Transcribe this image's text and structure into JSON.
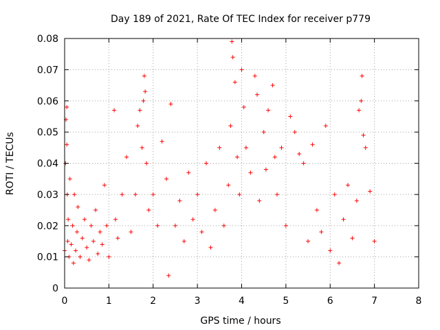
{
  "chart_data": {
    "type": "scatter",
    "title": "Day 189 of 2021, Rate Of TEC Index for receiver p779",
    "xlabel": "GPS time / hours",
    "ylabel": "ROTI / TECUs",
    "xlim": [
      0,
      8
    ],
    "ylim": [
      0,
      0.08
    ],
    "xticks": [
      "0",
      "1",
      "2",
      "3",
      "4",
      "5",
      "6",
      "7",
      "8"
    ],
    "yticks": [
      "0",
      "0.01",
      "0.02",
      "0.03",
      "0.04",
      "0.05",
      "0.06",
      "0.07",
      "0.08"
    ],
    "grid": true,
    "marker": "plus",
    "color": "#ff0000",
    "series": [
      {
        "name": "ROTI",
        "x": [
          0.0,
          0.02,
          0.03,
          0.05,
          0.05,
          0.06,
          0.07,
          0.08,
          0.1,
          0.12,
          0.15,
          0.18,
          0.2,
          0.22,
          0.25,
          0.28,
          0.3,
          0.35,
          0.4,
          0.45,
          0.5,
          0.55,
          0.6,
          0.65,
          0.7,
          0.75,
          0.8,
          0.85,
          0.9,
          0.95,
          1.0,
          1.12,
          1.15,
          1.2,
          1.3,
          1.4,
          1.5,
          1.6,
          1.65,
          1.7,
          1.75,
          1.78,
          1.8,
          1.82,
          1.85,
          1.9,
          2.0,
          2.1,
          2.2,
          2.3,
          2.35,
          2.4,
          2.5,
          2.6,
          2.7,
          2.8,
          2.9,
          3.0,
          3.1,
          3.2,
          3.3,
          3.4,
          3.5,
          3.6,
          3.7,
          3.75,
          3.78,
          3.8,
          3.85,
          3.9,
          3.95,
          4.0,
          4.05,
          4.1,
          4.2,
          4.3,
          4.35,
          4.4,
          4.5,
          4.55,
          4.6,
          4.7,
          4.75,
          4.8,
          4.9,
          5.0,
          5.1,
          5.2,
          5.3,
          5.4,
          5.5,
          5.6,
          5.7,
          5.8,
          5.9,
          6.0,
          6.1,
          6.2,
          6.3,
          6.4,
          6.5,
          6.6,
          6.65,
          6.7,
          6.72,
          6.75,
          6.8,
          6.9,
          7.0
        ],
        "y": [
          0.012,
          0.04,
          0.054,
          0.058,
          0.046,
          0.03,
          0.015,
          0.022,
          0.01,
          0.035,
          0.014,
          0.02,
          0.008,
          0.03,
          0.012,
          0.018,
          0.026,
          0.01,
          0.016,
          0.022,
          0.013,
          0.009,
          0.02,
          0.015,
          0.025,
          0.011,
          0.018,
          0.014,
          0.033,
          0.02,
          0.01,
          0.057,
          0.022,
          0.016,
          0.03,
          0.042,
          0.018,
          0.03,
          0.052,
          0.057,
          0.045,
          0.06,
          0.068,
          0.063,
          0.04,
          0.025,
          0.03,
          0.02,
          0.047,
          0.035,
          0.004,
          0.059,
          0.02,
          0.028,
          0.015,
          0.037,
          0.022,
          0.03,
          0.018,
          0.04,
          0.013,
          0.025,
          0.045,
          0.02,
          0.033,
          0.052,
          0.079,
          0.074,
          0.066,
          0.042,
          0.03,
          0.07,
          0.058,
          0.045,
          0.037,
          0.068,
          0.062,
          0.028,
          0.05,
          0.038,
          0.057,
          0.065,
          0.042,
          0.03,
          0.045,
          0.02,
          0.055,
          0.05,
          0.043,
          0.04,
          0.015,
          0.046,
          0.025,
          0.018,
          0.052,
          0.012,
          0.03,
          0.008,
          0.022,
          0.033,
          0.016,
          0.028,
          0.057,
          0.06,
          0.068,
          0.049,
          0.045,
          0.031,
          0.015
        ]
      }
    ]
  }
}
